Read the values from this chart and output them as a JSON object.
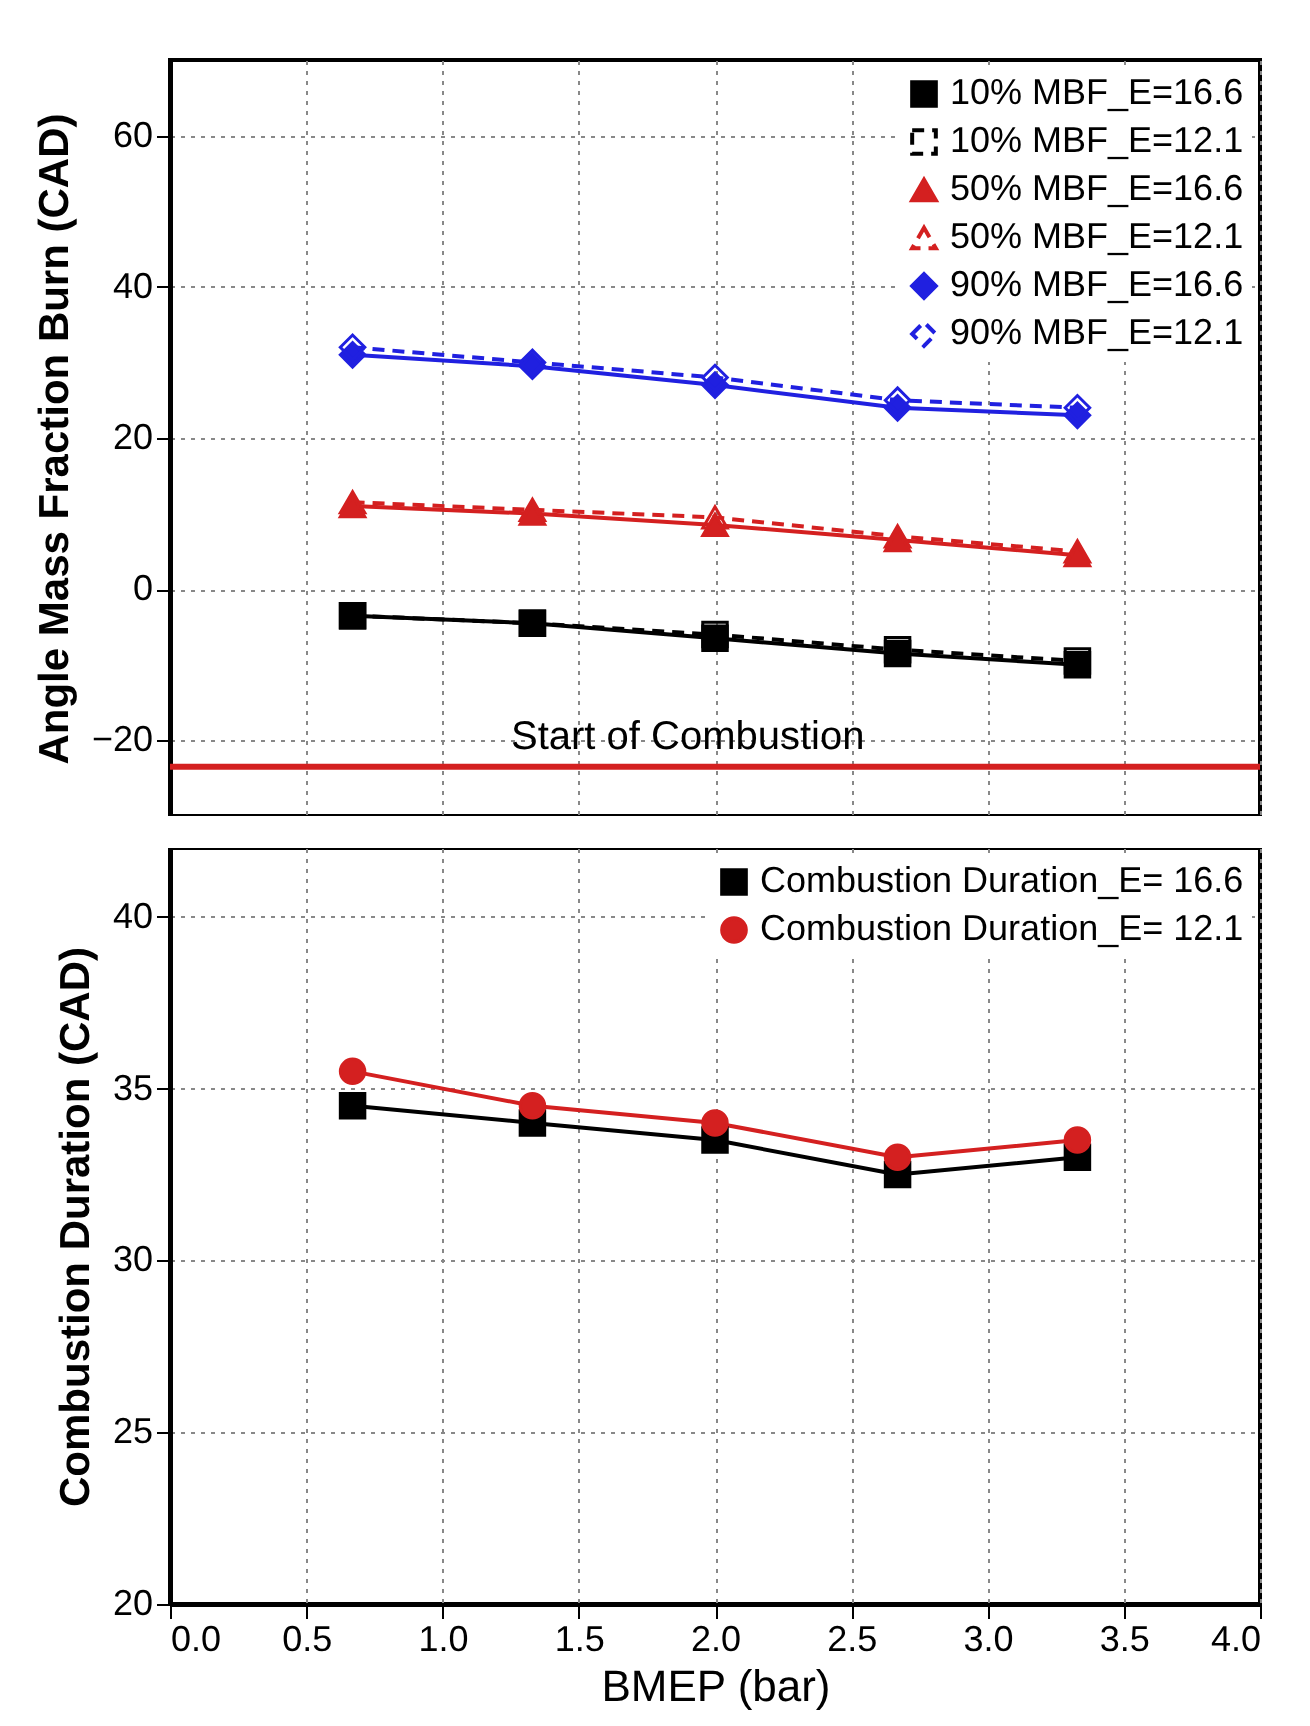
{
  "chart_data": [
    {
      "type": "line",
      "ylabel": "Angle Mass Fraction Burn (CAD)",
      "x": [
        0.67,
        1.33,
        2.0,
        2.67,
        3.33
      ],
      "xlim": [
        0,
        4
      ],
      "xticks": [
        0,
        0.5,
        1,
        1.5,
        2,
        2.5,
        3,
        3.5,
        4
      ],
      "ylim": [
        -30,
        70
      ],
      "yticks": [
        -20,
        0,
        20,
        40,
        60
      ],
      "grid": true,
      "legend": "top right",
      "tick_labels": "y",
      "series": [
        {
          "name": "10% MBF_E=16.6",
          "color": "#000000",
          "marker": "square",
          "line_style": "solid",
          "values": [
            -3.5,
            -4.5,
            -6.5,
            -8.5,
            -10
          ]
        },
        {
          "name": "10% MBF_E=12.1",
          "color": "#000000",
          "marker": "square",
          "line_style": "dashed",
          "values": [
            -3.5,
            -4.5,
            -6,
            -8,
            -9.5
          ]
        },
        {
          "name": "50% MBF_E=16.6",
          "color": "#d42020",
          "marker": "triangle",
          "line_style": "solid",
          "values": [
            11,
            10,
            8.5,
            6.5,
            4.5
          ]
        },
        {
          "name": "50% MBF_E=12.1",
          "color": "#d42020",
          "marker": "triangle",
          "line_style": "dashed",
          "values": [
            11.5,
            10.5,
            9.5,
            7,
            5
          ]
        },
        {
          "name": "90% MBF_E=16.6",
          "color": "#2020e0",
          "marker": "diamond",
          "line_style": "solid",
          "values": [
            31,
            29.5,
            27,
            24,
            23
          ]
        },
        {
          "name": "90% MBF_E=12.1",
          "color": "#2020e0",
          "marker": "diamond",
          "line_style": "dashed",
          "values": [
            32,
            30,
            28,
            25,
            24
          ]
        }
      ],
      "ref_lines": [
        {
          "axis": "y",
          "value": -23.5,
          "label": "Start of Combustion",
          "color": "#d42020"
        }
      ]
    },
    {
      "type": "line",
      "xlabel": "BMEP (bar)",
      "ylabel": "Combustion Duration (CAD)",
      "x": [
        0.67,
        1.33,
        2.0,
        2.67,
        3.33
      ],
      "xlim": [
        0,
        4
      ],
      "xticks": [
        {
          "value": 0,
          "label": "0.0"
        },
        0.5,
        {
          "value": 1,
          "label": "1.0"
        },
        1.5,
        {
          "value": 2,
          "label": "2.0"
        },
        2.5,
        {
          "value": 3,
          "label": "3.0"
        },
        3.5,
        {
          "value": 4,
          "label": "4.0"
        }
      ],
      "ylim": [
        20,
        42
      ],
      "yticks": [
        20,
        25,
        30,
        35,
        40
      ],
      "grid": true,
      "legend": "top right",
      "series": [
        {
          "name": "Combustion Duration_E= 16.6",
          "color": "#000000",
          "marker": "square",
          "line_style": "solid",
          "values": [
            34.5,
            34,
            33.5,
            32.5,
            33
          ]
        },
        {
          "name": "Combustion Duration_E= 12.1",
          "color": "#d42020",
          "marker": "circle",
          "line_style": "solid",
          "values": [
            35.5,
            34.5,
            34,
            33,
            33.5
          ]
        }
      ]
    }
  ]
}
